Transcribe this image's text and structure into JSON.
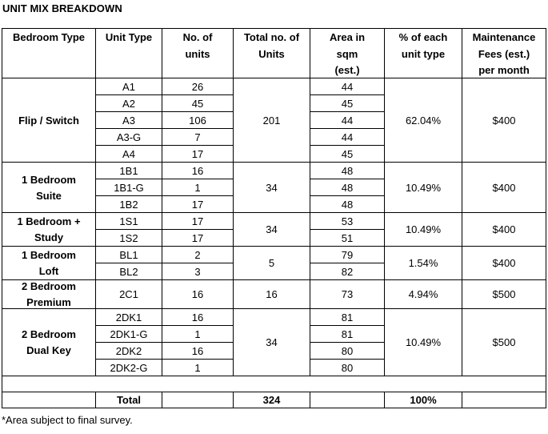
{
  "title": "UNIT MIX BREAKDOWN",
  "headers": {
    "bedroom_type": "Bedroom Type",
    "unit_type": "Unit Type",
    "no_units_1": "No. of",
    "no_units_2": "units",
    "total_1": "Total no. of",
    "total_2": "Units",
    "area_1": "Area in",
    "area_2": "sqm",
    "area_3": "(est.)",
    "pct_1": "% of each",
    "pct_2": "unit type",
    "fee_1": "Maintenance",
    "fee_2": "Fees (est.)",
    "fee_3": "per month"
  },
  "groups": [
    {
      "bedroom_lines": [
        "Flip / Switch"
      ],
      "total": "201",
      "pct": "62.04%",
      "fee": "$400",
      "units": [
        {
          "type": "A1",
          "count": "26",
          "area": "44"
        },
        {
          "type": "A2",
          "count": "45",
          "area": "45"
        },
        {
          "type": "A3",
          "count": "106",
          "area": "44"
        },
        {
          "type": "A3-G",
          "count": "7",
          "area": "44"
        },
        {
          "type": "A4",
          "count": "17",
          "area": "45"
        }
      ]
    },
    {
      "bedroom_lines": [
        "1 Bedroom",
        "Suite"
      ],
      "total": "34",
      "pct": "10.49%",
      "fee": "$400",
      "units": [
        {
          "type": "1B1",
          "count": "16",
          "area": "48"
        },
        {
          "type": "1B1-G",
          "count": "1",
          "area": "48"
        },
        {
          "type": "1B2",
          "count": "17",
          "area": "48"
        }
      ]
    },
    {
      "bedroom_lines": [
        "1 Bedroom +",
        "Study"
      ],
      "total": "34",
      "pct": "10.49%",
      "fee": "$400",
      "units": [
        {
          "type": "1S1",
          "count": "17",
          "area": "53"
        },
        {
          "type": "1S2",
          "count": "17",
          "area": "51"
        }
      ]
    },
    {
      "bedroom_lines": [
        "1 Bedroom",
        "Loft"
      ],
      "total": "5",
      "pct": "1.54%",
      "fee": "$400",
      "units": [
        {
          "type": "BL1",
          "count": "2",
          "area": "79"
        },
        {
          "type": "BL2",
          "count": "3",
          "area": "82"
        }
      ]
    },
    {
      "bedroom_lines": [
        "2 Bedroom",
        "Premium"
      ],
      "total": "16",
      "pct": "4.94%",
      "fee": "$500",
      "units": [
        {
          "type": "2C1",
          "count": "16",
          "area": "73"
        }
      ]
    },
    {
      "bedroom_lines": [
        "2 Bedroom",
        "Dual Key"
      ],
      "total": "34",
      "pct": "10.49%",
      "fee": "$500",
      "units": [
        {
          "type": "2DK1",
          "count": "16",
          "area": "81"
        },
        {
          "type": "2DK1-G",
          "count": "1",
          "area": "81"
        },
        {
          "type": "2DK2",
          "count": "16",
          "area": "80"
        },
        {
          "type": "2DK2-G",
          "count": "1",
          "area": "80"
        }
      ]
    }
  ],
  "total_row": {
    "label": "Total",
    "units": "324",
    "pct": "100%"
  },
  "footnote": "*Area subject to final survey."
}
